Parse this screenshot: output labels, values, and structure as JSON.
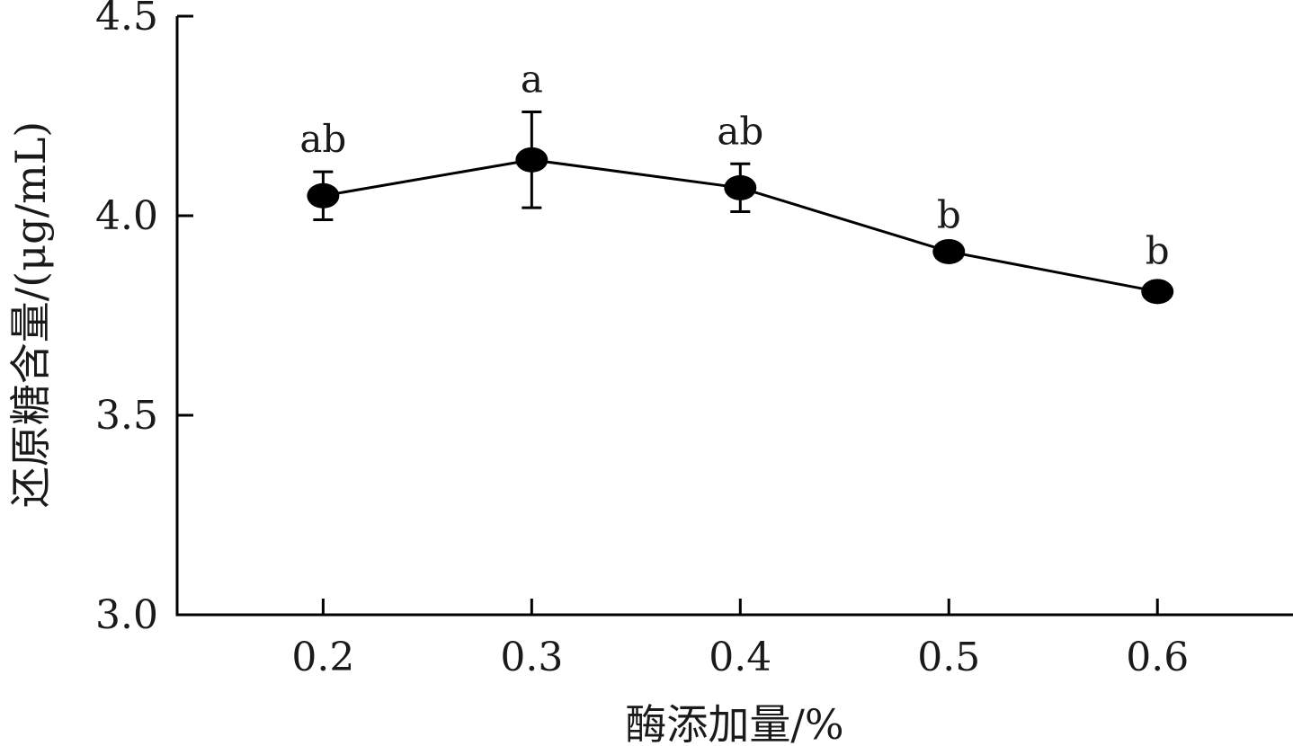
{
  "chart_data": {
    "type": "line",
    "title": "",
    "xlabel": "酶添加量/%",
    "ylabel": "还原糖含量/(μg/mL)",
    "x": [
      0.2,
      0.3,
      0.4,
      0.5,
      0.6
    ],
    "x_tick_labels": [
      "0.2",
      "0.3",
      "0.4",
      "0.5",
      "0.6"
    ],
    "y_tick_labels": [
      "3.0",
      "3.5",
      "4.0",
      "4.5"
    ],
    "y_ticks": [
      3.0,
      3.5,
      4.0,
      4.5
    ],
    "ylim": [
      3.0,
      4.5
    ],
    "xlim": [
      0.13,
      0.665
    ],
    "grid": false,
    "series": [
      {
        "values": [
          4.05,
          4.14,
          4.07,
          3.91,
          3.81
        ],
        "errors": [
          0.06,
          0.12,
          0.06,
          0.01,
          0.02
        ],
        "significance": [
          "ab",
          "a",
          "ab",
          "b",
          "b"
        ],
        "marker": "filled-circle",
        "color": "#000000"
      }
    ]
  }
}
